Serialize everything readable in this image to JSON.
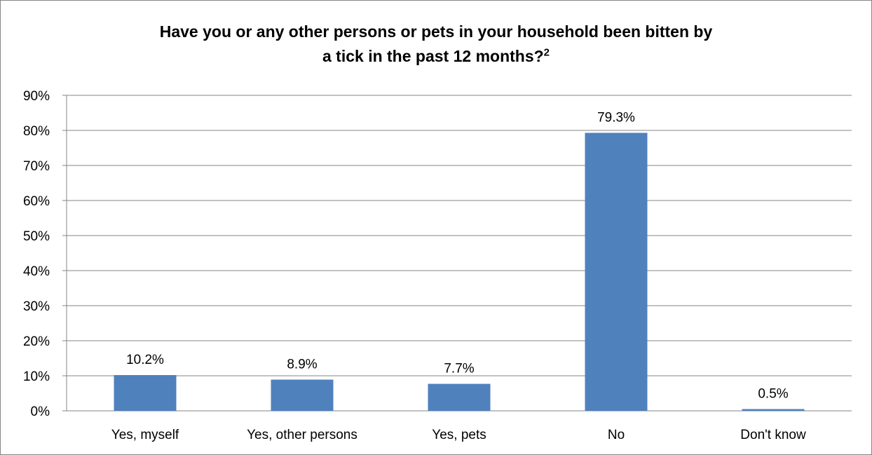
{
  "chart_data": {
    "type": "bar",
    "title_line1": "Have you or any other persons or pets in your household been bitten by",
    "title_line2": "a tick in the past 12 months?",
    "title_superscript": "2",
    "categories": [
      "Yes, myself",
      "Yes, other persons",
      "Yes, pets",
      "No",
      "Don't know"
    ],
    "values": [
      10.2,
      8.9,
      7.7,
      79.3,
      0.5
    ],
    "data_labels": [
      "10.2%",
      "8.9%",
      "7.7%",
      "79.3%",
      "0.5%"
    ],
    "ylim": [
      0,
      90
    ],
    "yticks": [
      0,
      10,
      20,
      30,
      40,
      50,
      60,
      70,
      80,
      90
    ],
    "ytick_labels": [
      "0%",
      "10%",
      "20%",
      "30%",
      "40%",
      "50%",
      "60%",
      "70%",
      "80%",
      "90%"
    ],
    "grid": true,
    "legend": "none",
    "bar_color": "#4f81bd",
    "grid_color": "#868686"
  }
}
